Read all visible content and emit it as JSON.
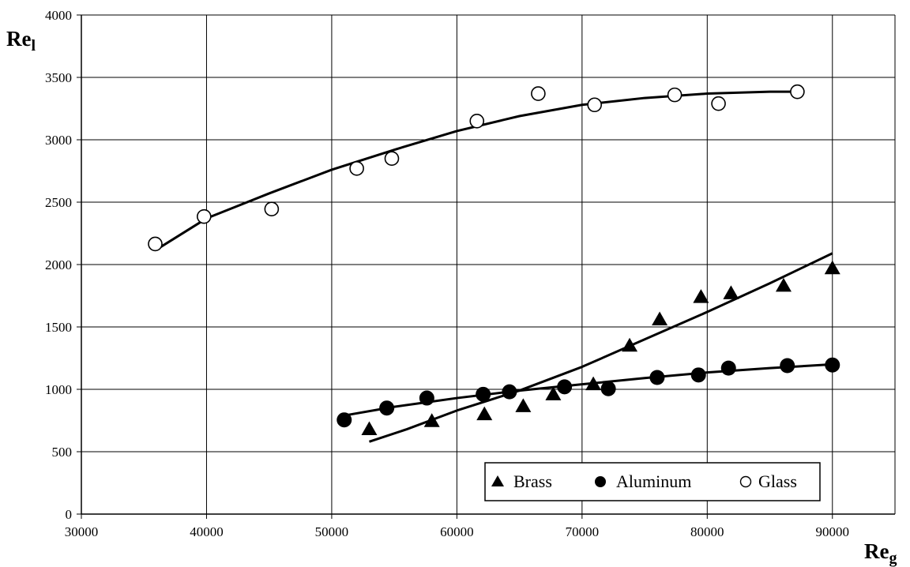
{
  "chart_data": {
    "type": "scatter",
    "xlabel": "Re",
    "xlabel_sub": "g",
    "ylabel": "Re",
    "ylabel_sub": "l",
    "xlim": [
      30000,
      95000
    ],
    "ylim": [
      0,
      4000
    ],
    "x_ticks": [
      30000,
      40000,
      50000,
      60000,
      70000,
      80000,
      90000
    ],
    "y_ticks": [
      0,
      500,
      1000,
      1500,
      2000,
      2500,
      3000,
      3500,
      4000
    ],
    "grid": true,
    "legend_position": "bottom-right",
    "series": [
      {
        "name": "Brass",
        "marker": "triangle",
        "color": "#000000",
        "points": [
          [
            53000,
            680
          ],
          [
            58000,
            745
          ],
          [
            62200,
            800
          ],
          [
            65300,
            865
          ],
          [
            67700,
            960
          ],
          [
            70900,
            1040
          ],
          [
            73800,
            1350
          ],
          [
            76200,
            1560
          ],
          [
            79500,
            1740
          ],
          [
            81900,
            1770
          ],
          [
            86100,
            1830
          ],
          [
            90000,
            1970
          ]
        ],
        "trend": [
          [
            53000,
            580
          ],
          [
            56000,
            680
          ],
          [
            60000,
            830
          ],
          [
            65000,
            990
          ],
          [
            70000,
            1180
          ],
          [
            75000,
            1400
          ],
          [
            80000,
            1620
          ],
          [
            85000,
            1850
          ],
          [
            90000,
            2090
          ]
        ]
      },
      {
        "name": "Aluminum",
        "marker": "filled-circle",
        "color": "#000000",
        "points": [
          [
            51000,
            755
          ],
          [
            54400,
            850
          ],
          [
            57600,
            930
          ],
          [
            62100,
            960
          ],
          [
            64200,
            980
          ],
          [
            68600,
            1020
          ],
          [
            72100,
            1005
          ],
          [
            76000,
            1095
          ],
          [
            79300,
            1115
          ],
          [
            81700,
            1170
          ],
          [
            86400,
            1190
          ],
          [
            90000,
            1195
          ]
        ],
        "trend": [
          [
            51000,
            790
          ],
          [
            55000,
            860
          ],
          [
            60000,
            930
          ],
          [
            65000,
            990
          ],
          [
            70000,
            1040
          ],
          [
            75000,
            1090
          ],
          [
            80000,
            1135
          ],
          [
            85000,
            1170
          ],
          [
            90000,
            1200
          ]
        ]
      },
      {
        "name": "Glass",
        "marker": "open-circle",
        "color": "#000000",
        "points": [
          [
            35900,
            2165
          ],
          [
            39800,
            2385
          ],
          [
            45200,
            2445
          ],
          [
            52000,
            2770
          ],
          [
            54800,
            2850
          ],
          [
            61600,
            3150
          ],
          [
            66500,
            3370
          ],
          [
            71000,
            3280
          ],
          [
            77400,
            3360
          ],
          [
            80900,
            3290
          ],
          [
            87200,
            3385
          ]
        ],
        "trend": [
          [
            36000,
            2120
          ],
          [
            40000,
            2370
          ],
          [
            45000,
            2570
          ],
          [
            50000,
            2760
          ],
          [
            55000,
            2920
          ],
          [
            60000,
            3070
          ],
          [
            65000,
            3190
          ],
          [
            70000,
            3280
          ],
          [
            75000,
            3335
          ],
          [
            80000,
            3370
          ],
          [
            85000,
            3385
          ],
          [
            87200,
            3385
          ]
        ]
      }
    ]
  }
}
